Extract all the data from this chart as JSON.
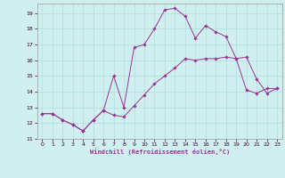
{
  "title": "",
  "xlabel": "Windchill (Refroidissement éolien,°C)",
  "ylabel": "",
  "bg_color": "#d0f0f0",
  "line_color": "#993399",
  "grid_color": "#b0dede",
  "ylim": [
    11,
    19.6
  ],
  "xlim": [
    -0.5,
    23.5
  ],
  "yticks": [
    11,
    12,
    13,
    14,
    15,
    16,
    17,
    18,
    19
  ],
  "xticks": [
    0,
    1,
    2,
    3,
    4,
    5,
    6,
    7,
    8,
    9,
    10,
    11,
    12,
    13,
    14,
    15,
    16,
    17,
    18,
    19,
    20,
    21,
    22,
    23
  ],
  "line1_x": [
    0,
    1,
    2,
    3,
    4,
    5,
    6,
    7,
    8,
    9,
    10,
    11,
    12,
    13,
    14,
    15,
    16,
    17,
    18,
    19,
    20,
    21,
    22,
    23
  ],
  "line1_y": [
    12.6,
    12.6,
    12.2,
    11.9,
    11.5,
    12.2,
    12.8,
    12.5,
    12.4,
    13.1,
    13.8,
    14.5,
    15.0,
    15.5,
    16.1,
    16.0,
    16.1,
    16.1,
    16.2,
    16.1,
    14.1,
    13.9,
    14.2,
    14.2
  ],
  "line2_x": [
    0,
    1,
    2,
    3,
    4,
    5,
    6,
    7,
    8,
    9,
    10,
    11,
    12,
    13,
    14,
    15,
    16,
    17,
    18,
    19,
    20,
    21,
    22,
    23
  ],
  "line2_y": [
    12.6,
    12.6,
    12.2,
    11.9,
    11.5,
    12.2,
    12.8,
    15.0,
    13.0,
    16.8,
    17.0,
    18.0,
    19.2,
    19.3,
    18.8,
    17.4,
    18.2,
    17.8,
    17.5,
    16.1,
    16.2,
    14.8,
    13.9,
    14.2
  ],
  "figsize": [
    3.2,
    2.0
  ],
  "dpi": 100
}
